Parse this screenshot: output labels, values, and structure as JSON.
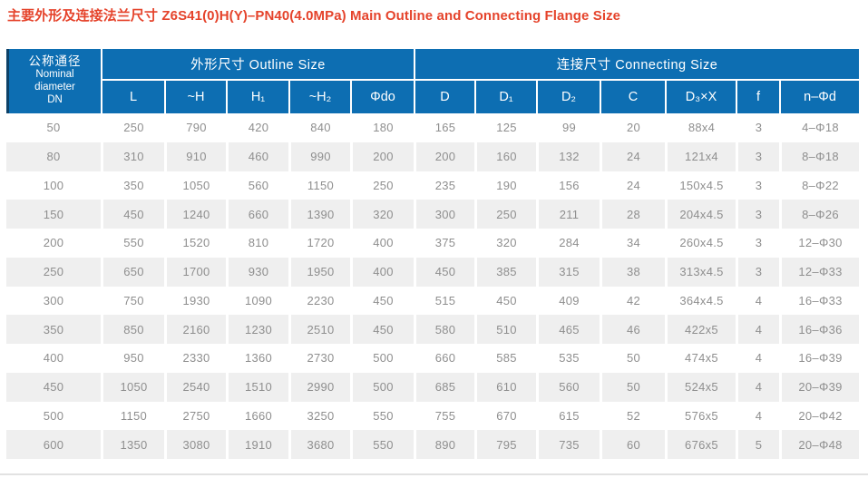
{
  "title": "主要外形及连接法兰尺寸 Z6S41(0)H(Y)–PN40(4.0MPa) Main Outline and Connecting Flange Size",
  "table": {
    "dn_header": {
      "zh": "公称通径",
      "en1": "Nominal",
      "en2": "diameter",
      "en3": "DN"
    },
    "groups": [
      {
        "label": "外形尺寸 Outline Size",
        "span": 5
      },
      {
        "label": "连接尺寸 Connecting Size",
        "span": 7
      }
    ],
    "columns": [
      "L",
      "~H",
      "H₁",
      "~H₂",
      "Φdo",
      "D",
      "D₁",
      "D₂",
      "C",
      "D₃×X",
      "f",
      "n–Φd"
    ],
    "rows": [
      [
        "50",
        "250",
        "790",
        "420",
        "840",
        "180",
        "165",
        "125",
        "99",
        "20",
        "88x4",
        "3",
        "4–Φ18"
      ],
      [
        "80",
        "310",
        "910",
        "460",
        "990",
        "200",
        "200",
        "160",
        "132",
        "24",
        "121x4",
        "3",
        "8–Φ18"
      ],
      [
        "100",
        "350",
        "1050",
        "560",
        "1150",
        "250",
        "235",
        "190",
        "156",
        "24",
        "150x4.5",
        "3",
        "8–Φ22"
      ],
      [
        "150",
        "450",
        "1240",
        "660",
        "1390",
        "320",
        "300",
        "250",
        "211",
        "28",
        "204x4.5",
        "3",
        "8–Φ26"
      ],
      [
        "200",
        "550",
        "1520",
        "810",
        "1720",
        "400",
        "375",
        "320",
        "284",
        "34",
        "260x4.5",
        "3",
        "12–Φ30"
      ],
      [
        "250",
        "650",
        "1700",
        "930",
        "1950",
        "400",
        "450",
        "385",
        "315",
        "38",
        "313x4.5",
        "3",
        "12–Φ33"
      ],
      [
        "300",
        "750",
        "1930",
        "1090",
        "2230",
        "450",
        "515",
        "450",
        "409",
        "42",
        "364x4.5",
        "4",
        "16–Φ33"
      ],
      [
        "350",
        "850",
        "2160",
        "1230",
        "2510",
        "450",
        "580",
        "510",
        "465",
        "46",
        "422x5",
        "4",
        "16–Φ36"
      ],
      [
        "400",
        "950",
        "2330",
        "1360",
        "2730",
        "500",
        "660",
        "585",
        "535",
        "50",
        "474x5",
        "4",
        "16–Φ39"
      ],
      [
        "450",
        "1050",
        "2540",
        "1510",
        "2990",
        "500",
        "685",
        "610",
        "560",
        "50",
        "524x5",
        "4",
        "20–Φ39"
      ],
      [
        "500",
        "1150",
        "2750",
        "1660",
        "3250",
        "550",
        "755",
        "670",
        "615",
        "52",
        "576x5",
        "4",
        "20–Φ42"
      ],
      [
        "600",
        "1350",
        "3080",
        "1910",
        "3680",
        "550",
        "890",
        "795",
        "735",
        "60",
        "676x5",
        "5",
        "20–Φ48"
      ]
    ],
    "colors": {
      "header_blue": "#0d6eb2",
      "header_edge_dark": "#0c4168",
      "title_red": "#e5432b",
      "alt_row_gray": "#efefef",
      "cell_text_gray": "#8f8f8f"
    }
  }
}
